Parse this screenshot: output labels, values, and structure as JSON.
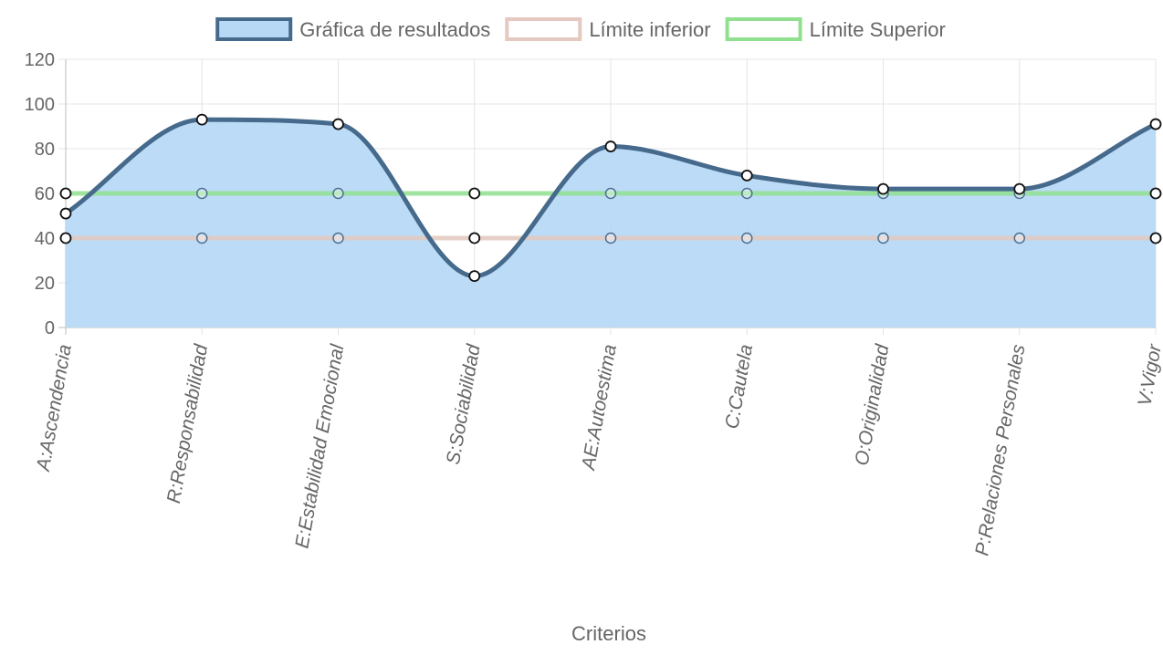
{
  "chart_data": {
    "type": "area",
    "xlabel": "Criterios",
    "ylabel": "",
    "ylim": [
      0,
      120
    ],
    "yticks": [
      0,
      20,
      40,
      60,
      80,
      100,
      120
    ],
    "grid": true,
    "legend_position": "top",
    "categories": [
      "A:Ascendencia",
      "R:Responsabilidad",
      "E:Estabilidad Emocional",
      "S:Sociabilidad",
      "AE:Autoestima",
      "C:Cautela",
      "O:Originalidad",
      "P:Relaciones Personales",
      "V:Vigor"
    ],
    "series": [
      {
        "name": "Gráfica de resultados",
        "values": [
          51,
          93,
          91,
          23,
          81,
          68,
          62,
          62,
          91
        ],
        "line_color": "#466a8c",
        "fill_color": "#b8d9f5",
        "legend_fill": "#b8d9f5",
        "legend_border": "#466a8c",
        "filled": true,
        "smooth": true
      },
      {
        "name": "Límite inferior",
        "values": [
          40,
          40,
          40,
          40,
          40,
          40,
          40,
          40,
          40
        ],
        "line_color": "#e3c9bf",
        "legend_fill": "#ffffff",
        "legend_border": "#e3c9bf",
        "filled": false,
        "smooth": false
      },
      {
        "name": "Límite Superior",
        "values": [
          60,
          60,
          60,
          60,
          60,
          60,
          60,
          60,
          60
        ],
        "line_color": "#90e090",
        "legend_fill": "#ffffff",
        "legend_border": "#90e090",
        "filled": false,
        "smooth": false
      }
    ]
  }
}
